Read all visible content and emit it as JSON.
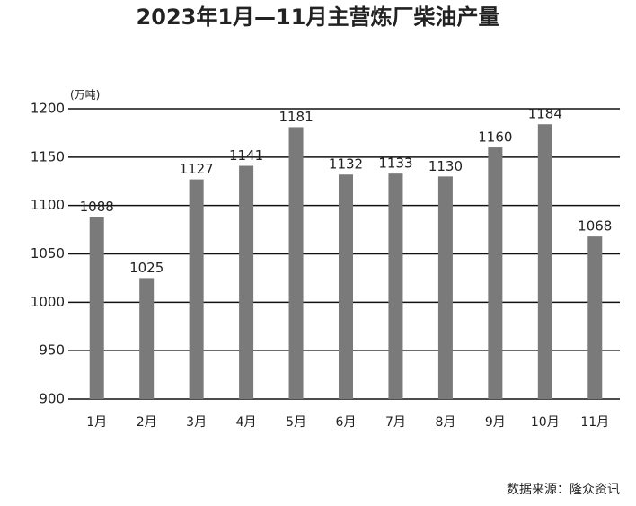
{
  "chart_data": {
    "type": "bar",
    "title": "2023年1月—11月主营炼厂柴油产量",
    "unit_label": "(万吨)",
    "source": "数据来源：隆众资讯",
    "categories": [
      "1月",
      "2月",
      "3月",
      "4月",
      "5月",
      "6月",
      "7月",
      "8月",
      "9月",
      "10月",
      "11月"
    ],
    "values": [
      1088,
      1025,
      1127,
      1141,
      1181,
      1132,
      1133,
      1130,
      1160,
      1184,
      1068
    ],
    "color": "#7a7a7a",
    "ylim": [
      900,
      1200
    ],
    "yticks": [
      900,
      950,
      1000,
      1050,
      1100,
      1150,
      1200
    ],
    "grid": true
  }
}
